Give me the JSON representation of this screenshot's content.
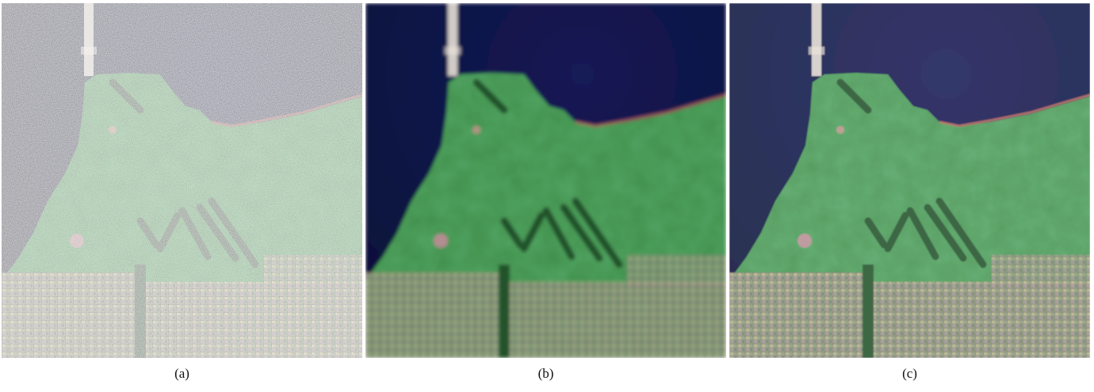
{
  "figure": {
    "panels": [
      {
        "caption": "(a)",
        "style": "noisy"
      },
      {
        "caption": "(b)",
        "style": "smooth"
      },
      {
        "caption": "(c)",
        "style": "balanced"
      }
    ]
  },
  "colors": {
    "water": "#141a55",
    "water_deep": "#0c1038",
    "vegetation": "#3f8f4a",
    "vegetation_dark": "#1e4a26",
    "urban": "#9a9a84",
    "bridge": "#e8e0d6",
    "shore_lights": "#c06a5a"
  }
}
